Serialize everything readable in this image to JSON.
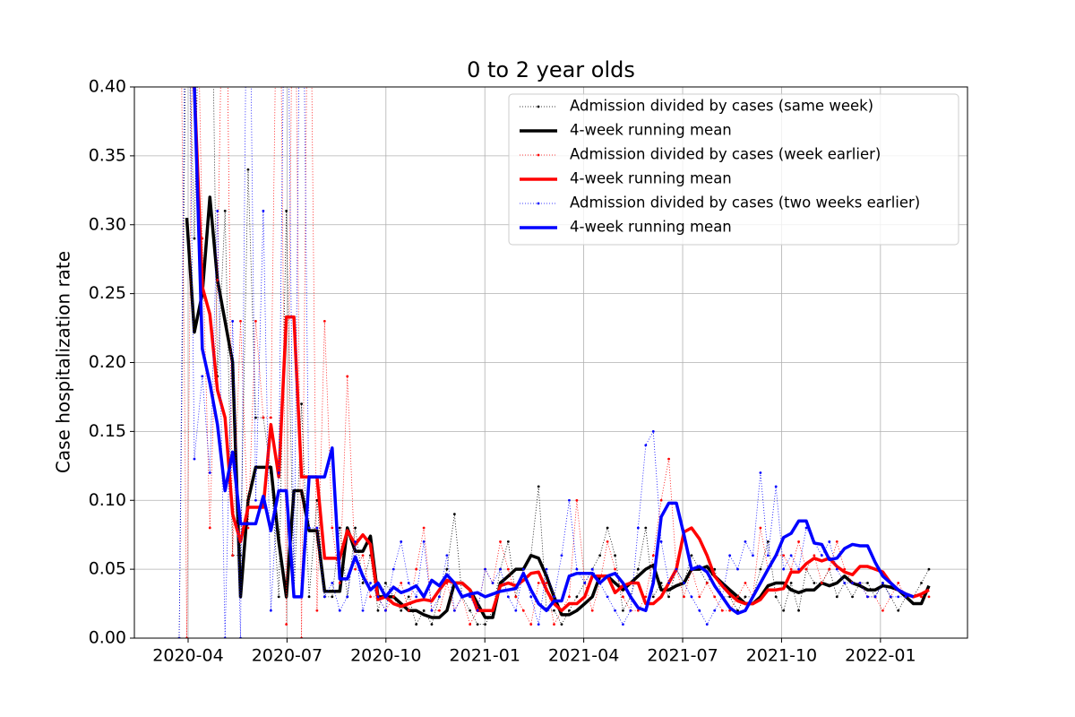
{
  "chart_data": {
    "type": "line",
    "title": "0 to 2 year olds",
    "ylabel": "Case hospitalization rate",
    "x": [
      2.73,
      2.96,
      3.19,
      3.43,
      3.66,
      3.89,
      4.12,
      4.35,
      4.59,
      4.82,
      5.05,
      5.28,
      5.51,
      5.75,
      5.98,
      6.21,
      6.44,
      6.67,
      6.91,
      7.14,
      7.37,
      7.6,
      7.83,
      8.07,
      8.3,
      8.53,
      8.76,
      8.99,
      9.23,
      9.46,
      9.69,
      9.92,
      10.15,
      10.39,
      10.62,
      10.85,
      11.08,
      11.31,
      11.55,
      11.78,
      12.01,
      12.24,
      12.47,
      12.71,
      12.94,
      13.17,
      13.4,
      13.63,
      13.87,
      14.1,
      14.33,
      14.56,
      14.79,
      15.03,
      15.26,
      15.49,
      15.72,
      15.95,
      16.19,
      16.42,
      16.65,
      16.88,
      17.11,
      17.35,
      17.58,
      17.81,
      18.04,
      18.27,
      18.51,
      18.74,
      18.97,
      19.2,
      19.43,
      19.67,
      19.9,
      20.13,
      20.36,
      20.59,
      20.83,
      21.06,
      21.29,
      21.52,
      21.75,
      21.99,
      22.22,
      22.45,
      22.68,
      22.91,
      23.15,
      23.38,
      23.61,
      23.84,
      24.07,
      24.31,
      24.54,
      24.77,
      25.0,
      25.24,
      25.47
    ],
    "xlim": [
      1.37,
      26.64
    ],
    "xticks": [
      {
        "value": 3,
        "label": "2020-04"
      },
      {
        "value": 6,
        "label": "2020-07"
      },
      {
        "value": 9,
        "label": "2020-10"
      },
      {
        "value": 12,
        "label": "2021-01"
      },
      {
        "value": 15,
        "label": "2021-04"
      },
      {
        "value": 18,
        "label": "2021-07"
      },
      {
        "value": 21,
        "label": "2021-10"
      },
      {
        "value": 24,
        "label": "2022-01"
      }
    ],
    "ylim": [
      0,
      0.4
    ],
    "yticks": [
      {
        "value": 0,
        "label": "0.00"
      },
      {
        "value": 0.05,
        "label": "0.05"
      },
      {
        "value": 0.1,
        "label": "0.10"
      },
      {
        "value": 0.15,
        "label": "0.15"
      },
      {
        "value": 0.2,
        "label": "0.20"
      },
      {
        "value": 0.25,
        "label": "0.25"
      },
      {
        "value": 0.3,
        "label": "0.30"
      },
      {
        "value": 0.35,
        "label": "0.35"
      },
      {
        "value": 0.4,
        "label": "0.40"
      }
    ],
    "grid": true,
    "legend": "upper right",
    "series": [
      {
        "name": "Admission divided by cases (same week)",
        "color": "#000000",
        "style": "dotted",
        "values": [
          0,
          0.5,
          0.29,
          0.6,
          0.6,
          0.19,
          0.31,
          0.06,
          0.06,
          0.34,
          0.16,
          0.16,
          0.12,
          0.03,
          0.31,
          0.03,
          0.17,
          0.03,
          0.1,
          0.03,
          0.03,
          0.08,
          0.03,
          0.08,
          0.04,
          0.06,
          0.02,
          0.04,
          0.03,
          0.02,
          0.03,
          0.01,
          0.02,
          0.01,
          0.03,
          0.05,
          0.09,
          0.03,
          0.02,
          0.01,
          0.01,
          0.02,
          0.05,
          0.07,
          0.03,
          0.05,
          0.06,
          0.11,
          0.02,
          0.02,
          0.01,
          0.02,
          0.03,
          0.04,
          0.05,
          0.06,
          0.08,
          0.06,
          0.02,
          0.03,
          0.05,
          0.08,
          0.03,
          0.04,
          0.03,
          0.05,
          0.04,
          0.06,
          0.05,
          0.04,
          0.05,
          0.03,
          0.03,
          0.02,
          0.03,
          0.03,
          0.05,
          0.07,
          0.03,
          0.02,
          0.04,
          0.02,
          0.05,
          0.04,
          0.04,
          0.05,
          0.03,
          0.04,
          0.03,
          0.04,
          0.04,
          0.03,
          0.04,
          0.03,
          0.02,
          0.03,
          0.03,
          0.04,
          0.05
        ]
      },
      {
        "name": "4-week running mean",
        "color": "#000000",
        "style": "solid",
        "values": [
          null,
          0.305,
          0.222,
          0.25,
          0.32,
          0.26,
          0.23,
          0.2,
          0.03,
          0.1,
          0.124,
          0.124,
          0.124,
          0.07,
          0.03,
          0.107,
          0.107,
          0.078,
          0.078,
          0.034,
          0.034,
          0.034,
          0.08,
          0.063,
          0.063,
          0.074,
          0.03,
          0.03,
          0.03,
          0.025,
          0.02,
          0.02,
          0.017,
          0.015,
          0.015,
          0.02,
          0.04,
          0.04,
          0.035,
          0.025,
          0.015,
          0.015,
          0.04,
          0.045,
          0.05,
          0.05,
          0.06,
          0.058,
          0.045,
          0.03,
          0.017,
          0.017,
          0.02,
          0.025,
          0.03,
          0.045,
          0.045,
          0.04,
          0.035,
          0.04,
          0.045,
          0.05,
          0.053,
          0.035,
          0.035,
          0.038,
          0.04,
          0.05,
          0.05,
          0.052,
          0.045,
          0.04,
          0.035,
          0.03,
          0.025,
          0.025,
          0.03,
          0.038,
          0.04,
          0.04,
          0.035,
          0.033,
          0.035,
          0.035,
          0.04,
          0.038,
          0.04,
          0.045,
          0.04,
          0.038,
          0.035,
          0.035,
          0.038,
          0.037,
          0.035,
          0.03,
          0.025,
          0.025,
          0.038
        ]
      },
      {
        "name": "Admission divided by cases (week earlier)",
        "color": "#ff0000",
        "style": "dotted",
        "values": [
          0.6,
          0,
          0.6,
          0.29,
          0.08,
          0.26,
          0.6,
          0.06,
          0.23,
          0.08,
          0.23,
          0.16,
          0.16,
          0.6,
          0.01,
          0.6,
          0,
          0.6,
          0.02,
          0.23,
          0.08,
          0.04,
          0.19,
          0.05,
          0.06,
          0.03,
          0.03,
          0.02,
          0.03,
          0.04,
          0.02,
          0.05,
          0.08,
          0.02,
          0.02,
          0.04,
          0.02,
          0.03,
          0.01,
          0.02,
          0.05,
          0.04,
          0.07,
          0.05,
          0.03,
          0.02,
          0.01,
          0.04,
          0.04,
          0.01,
          0.02,
          0.03,
          0.1,
          0.04,
          0.02,
          0.04,
          0.07,
          0.05,
          0.03,
          0.02,
          0.02,
          0.03,
          0.06,
          0.1,
          0.13,
          0.05,
          0.03,
          0.05,
          0.03,
          0.04,
          0.03,
          0.02,
          0.02,
          0.03,
          0.04,
          0.03,
          0.08,
          0.05,
          0.06,
          0.06,
          0.05,
          0.07,
          0.05,
          0.06,
          0.04,
          0.05,
          0.07,
          0.05,
          0.04,
          0.04,
          0.03,
          0.03,
          0.02,
          0.03,
          0.04,
          0.03,
          0.03,
          0.03,
          0.03
        ]
      },
      {
        "name": "4-week running mean",
        "color": "#ff0000",
        "style": "solid",
        "values": [
          null,
          null,
          0.4,
          0.255,
          0.235,
          0.18,
          0.16,
          0.09,
          0.07,
          0.095,
          0.095,
          0.095,
          0.155,
          0.117,
          0.233,
          0.233,
          0.117,
          0.117,
          0.117,
          0.058,
          0.058,
          0.058,
          0.078,
          0.068,
          0.075,
          0.068,
          0.028,
          0.03,
          0.025,
          0.023,
          0.025,
          0.027,
          0.028,
          0.027,
          0.035,
          0.042,
          0.04,
          0.04,
          0.035,
          0.02,
          0.02,
          0.02,
          0.038,
          0.04,
          0.038,
          0.042,
          0.047,
          0.048,
          0.035,
          0.025,
          0.02,
          0.025,
          0.025,
          0.03,
          0.045,
          0.045,
          0.045,
          0.033,
          0.038,
          0.04,
          0.04,
          0.025,
          0.025,
          0.03,
          0.04,
          0.05,
          0.077,
          0.08,
          0.072,
          0.06,
          0.045,
          0.038,
          0.032,
          0.027,
          0.025,
          0.025,
          0.028,
          0.035,
          0.035,
          0.036,
          0.048,
          0.048,
          0.054,
          0.058,
          0.056,
          0.058,
          0.052,
          0.048,
          0.046,
          0.052,
          0.052,
          0.05,
          0.048,
          0.04,
          0.035,
          0.032,
          0.03,
          0.032,
          0.035
        ]
      },
      {
        "name": "Admission divided by cases (two weeks earlier)",
        "color": "#0000ff",
        "style": "dotted",
        "values": [
          0,
          0.6,
          0.13,
          0.19,
          0.12,
          0.31,
          0,
          0.23,
          0,
          0.6,
          0.1,
          0.31,
          0.02,
          0.12,
          0.6,
          0.03,
          0.6,
          0.08,
          0.08,
          0.03,
          0.04,
          0.02,
          0.03,
          0.07,
          0.02,
          0.04,
          0.03,
          0.02,
          0.05,
          0.07,
          0.04,
          0.03,
          0.07,
          0.02,
          0.03,
          0.06,
          0.02,
          0.03,
          0.03,
          0.02,
          0.05,
          0.04,
          0.05,
          0.03,
          0.02,
          0.05,
          0.03,
          0.01,
          0.05,
          0.03,
          0.06,
          0.1,
          0.05,
          0.04,
          0.05,
          0.04,
          0.03,
          0.02,
          0.01,
          0.02,
          0.08,
          0.14,
          0.15,
          0.07,
          0.04,
          0.05,
          0.04,
          0.03,
          0.02,
          0.01,
          0.02,
          0.03,
          0.06,
          0.05,
          0.07,
          0.06,
          0.12,
          0.06,
          0.11,
          0.05,
          0.06,
          0.05,
          0.08,
          0.07,
          0.06,
          0.07,
          0.05,
          0.04,
          0.04,
          0.04,
          0.03,
          0.03,
          0.04,
          0.03,
          0.03,
          0.03,
          null,
          null,
          null
        ]
      },
      {
        "name": "4-week running mean",
        "color": "#0000ff",
        "style": "solid",
        "values": [
          null,
          null,
          0.4,
          0.21,
          0.185,
          0.155,
          0.107,
          0.135,
          0.083,
          0.083,
          0.083,
          0.103,
          0.078,
          0.107,
          0.107,
          0.03,
          0.03,
          0.117,
          0.117,
          0.117,
          0.138,
          0.043,
          0.043,
          0.059,
          0.045,
          0.035,
          0.04,
          0.03,
          0.037,
          0.033,
          0.035,
          0.038,
          0.03,
          0.042,
          0.038,
          0.046,
          0.04,
          0.03,
          0.032,
          0.033,
          0.03,
          0.032,
          0.034,
          0.035,
          0.036,
          0.047,
          0.035,
          0.025,
          0.02,
          0.027,
          0.027,
          0.045,
          0.047,
          0.047,
          0.047,
          0.04,
          0.045,
          0.047,
          0.04,
          0.03,
          0.022,
          0.02,
          0.04,
          0.088,
          0.098,
          0.098,
          0.075,
          0.05,
          0.052,
          0.048,
          0.038,
          0.03,
          0.022,
          0.018,
          0.02,
          0.03,
          0.04,
          0.05,
          0.06,
          0.073,
          0.076,
          0.085,
          0.085,
          0.069,
          0.068,
          0.057,
          0.058,
          0.065,
          0.068,
          0.067,
          0.067,
          0.055,
          0.045,
          0.04,
          0.035,
          0.032,
          0.03,
          null,
          null
        ]
      }
    ]
  }
}
